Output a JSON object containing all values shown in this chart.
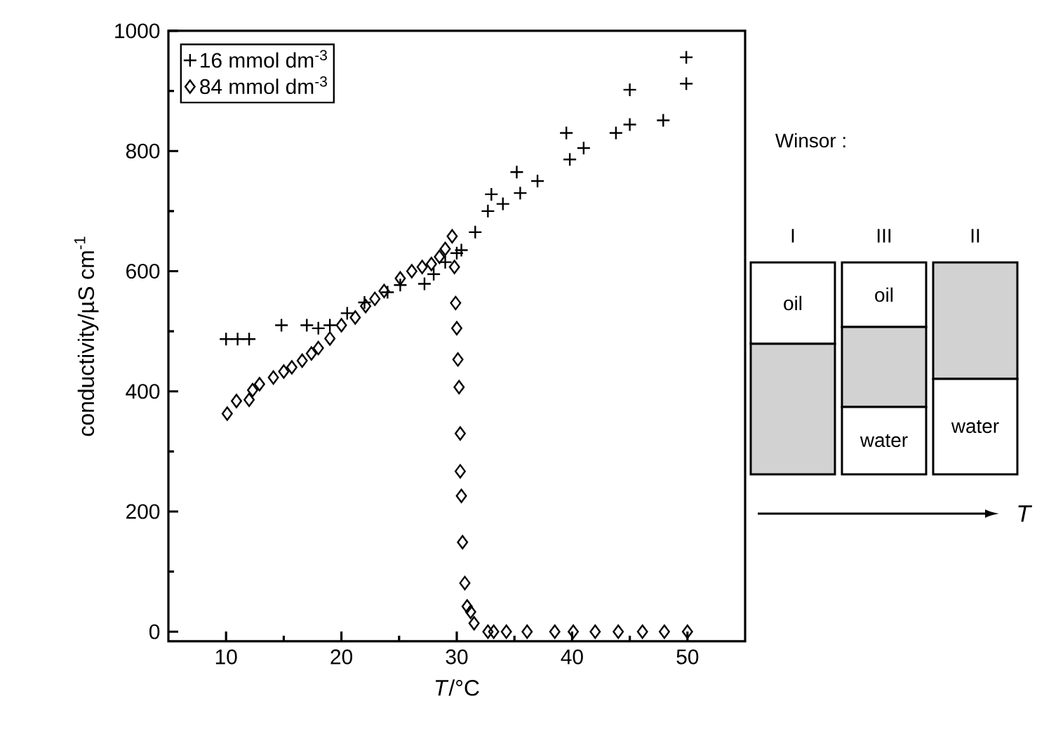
{
  "chart_data": {
    "type": "scatter",
    "xlabel": "*T*/°C",
    "ylabel": "conductivity/µS cm$^{-1}$",
    "xlim": [
      5,
      55
    ],
    "xticks": [
      10,
      20,
      30,
      40,
      50
    ],
    "ylim": [
      -16,
      1000
    ],
    "yticks": [
      0,
      200,
      400,
      600,
      800,
      1000
    ],
    "legend": "top left",
    "series": [
      {
        "name": "16 mmol dm$^{-3}$",
        "color": "#000000",
        "marker": "cross",
        "x": [
          10,
          11,
          12,
          14.8,
          17,
          18,
          19,
          20.5,
          22,
          24,
          25.1,
          27.2,
          28,
          29,
          30,
          30.4,
          31.6,
          32.7,
          33,
          34,
          35.2,
          35.5,
          37,
          39.5,
          39.8,
          41,
          43.8,
          45,
          45,
          47.9,
          49.9,
          49.9
        ],
        "values": [
          487,
          487,
          487,
          510,
          510,
          505,
          510,
          530,
          548,
          565,
          577,
          579,
          595,
          615,
          630,
          635,
          665,
          700,
          728,
          712,
          765,
          730,
          750,
          830,
          786,
          805,
          830,
          902,
          844,
          851,
          956,
          912
        ]
      },
      {
        "name": "84 mmol dm$^{-3}$",
        "color": "#000000",
        "marker": "diamond",
        "x": [
          10.1,
          10.9,
          12,
          12.3,
          12.9,
          14.1,
          15,
          15.7,
          16.6,
          17.4,
          18,
          19,
          20,
          21.2,
          22.1,
          22.9,
          23.7,
          25.1,
          26.1,
          27,
          27.8,
          28.5,
          29,
          29.6,
          29.8,
          29.9,
          30,
          30.1,
          30.2,
          30.3,
          30.3,
          30.4,
          30.5,
          30.7,
          30.9,
          31.2,
          31.5,
          32.7,
          33.2,
          34.3,
          36.1,
          38.5,
          40.1,
          42,
          44,
          46.1,
          48,
          50
        ],
        "values": [
          363,
          384,
          386,
          402,
          412,
          423,
          433,
          440,
          451,
          463,
          472,
          488,
          510,
          523,
          542,
          554,
          567,
          588,
          600,
          607,
          612,
          624,
          637,
          658,
          607,
          547,
          505,
          453,
          407,
          330,
          267,
          226,
          149,
          81,
          42,
          33,
          14,
          0,
          0,
          0,
          0,
          0,
          0,
          0,
          0,
          0,
          0,
          0
        ]
      }
    ],
    "annotations": [
      "Winsor :",
      "I",
      "III",
      "II",
      "oil",
      "oil",
      "water",
      "water",
      "T"
    ]
  }
}
